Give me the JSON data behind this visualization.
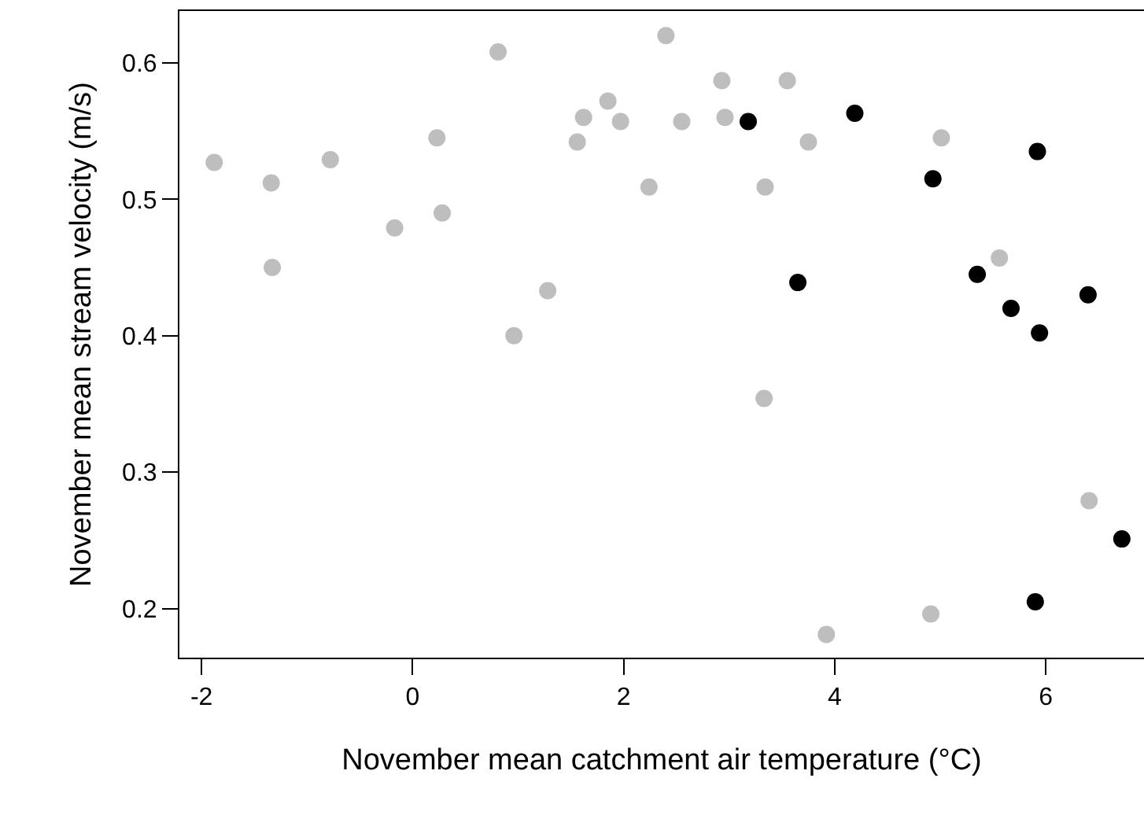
{
  "chart_data": {
    "type": "scatter",
    "xlabel": "November mean catchment air temperature (°C)",
    "ylabel": "November mean stream velocity (m/s)",
    "xlim": [
      -2.21,
      6.93
    ],
    "ylim": [
      0.164,
      0.638
    ],
    "xticks": [
      -2,
      0,
      2,
      4,
      6
    ],
    "yticks": [
      0.2,
      0.3,
      0.4,
      0.5,
      0.6
    ],
    "marker": "circle",
    "series": [
      {
        "color": "#bebebe",
        "x": [
          -1.88,
          -1.34,
          -1.33,
          -0.78,
          -0.17,
          0.23,
          0.28,
          0.81,
          0.96,
          1.28,
          1.56,
          1.62,
          1.85,
          1.97,
          2.24,
          2.4,
          2.93,
          3.55,
          2.55,
          2.96,
          3.75,
          3.34,
          5.01,
          5.56,
          3.33,
          6.41,
          4.91,
          3.92
        ],
        "values": [
          0.527,
          0.512,
          0.45,
          0.529,
          0.479,
          0.545,
          0.49,
          0.608,
          0.4,
          0.433,
          0.542,
          0.56,
          0.572,
          0.557,
          0.509,
          0.62,
          0.587,
          0.587,
          0.557,
          0.56,
          0.542,
          0.509,
          0.545,
          0.457,
          0.354,
          0.279,
          0.196,
          0.181
        ]
      },
      {
        "color": "#000000",
        "x": [
          3.18,
          4.19,
          5.92,
          4.93,
          3.65,
          5.35,
          5.67,
          5.94,
          6.4,
          6.72,
          5.9
        ],
        "values": [
          0.557,
          0.563,
          0.535,
          0.515,
          0.439,
          0.445,
          0.42,
          0.402,
          0.43,
          0.251,
          0.205
        ]
      }
    ]
  }
}
